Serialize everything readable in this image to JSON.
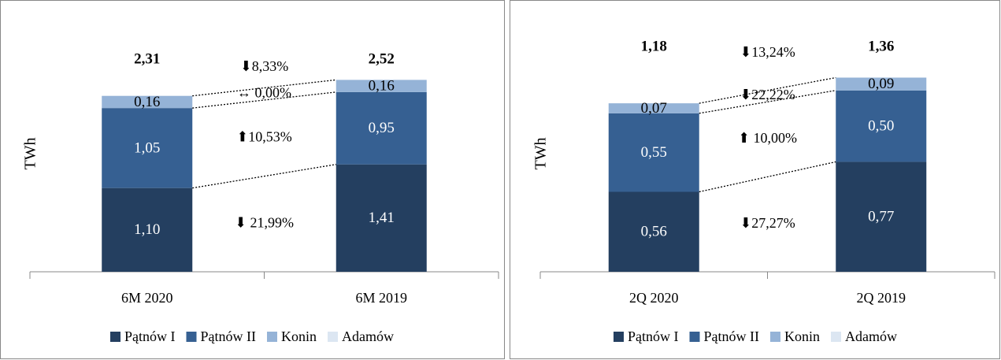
{
  "chart_data": [
    {
      "type": "bar",
      "stacked": true,
      "y_label": "TWh",
      "categories": [
        "6M 2020",
        "6M 2019"
      ],
      "series": [
        {
          "name": "Pątnów I",
          "color": "#243f60",
          "values": [
            1.1,
            1.41
          ],
          "value_labels": [
            "1,10",
            "1,41"
          ]
        },
        {
          "name": "Pątnów II",
          "color": "#366092",
          "values": [
            1.05,
            0.95
          ],
          "value_labels": [
            "1,05",
            "0,95"
          ]
        },
        {
          "name": "Konin",
          "color": "#95b3d7",
          "values": [
            0.16,
            0.16
          ],
          "value_labels": [
            "0,16",
            "0,16"
          ]
        },
        {
          "name": "Adamów",
          "color": "#dce6f2",
          "values": [
            0,
            0
          ]
        }
      ],
      "totals": [
        2.31,
        2.52
      ],
      "total_labels": [
        "2,31",
        "2,52"
      ],
      "annotations": [
        "⬇ 21,99%",
        "⬆10,53%",
        "↔ 0,00%",
        "⬇8,33%"
      ],
      "ylim": [
        0,
        3
      ]
    },
    {
      "type": "bar",
      "stacked": true,
      "y_label": "TWh",
      "categories": [
        "2Q 2020",
        "2Q 2019"
      ],
      "series": [
        {
          "name": "Pątnów I",
          "color": "#243f60",
          "values": [
            0.56,
            0.77
          ],
          "value_labels": [
            "0,56",
            "0,77"
          ]
        },
        {
          "name": "Pątnów II",
          "color": "#366092",
          "values": [
            0.55,
            0.5
          ],
          "value_labels": [
            "0,55",
            "0,50"
          ]
        },
        {
          "name": "Konin",
          "color": "#95b3d7",
          "values": [
            0.07,
            0.09
          ],
          "value_labels": [
            "0,07",
            "0,09"
          ]
        },
        {
          "name": "Adamów",
          "color": "#dce6f2",
          "values": [
            0,
            0
          ]
        }
      ],
      "totals": [
        1.18,
        1.36
      ],
      "total_labels": [
        "1,18",
        "1,36"
      ],
      "annotations": [
        "⬇27,27%",
        "⬆ 10,00%",
        "⬇22,22%",
        "⬇13,24%"
      ],
      "ylim": [
        0,
        1.6
      ]
    }
  ]
}
